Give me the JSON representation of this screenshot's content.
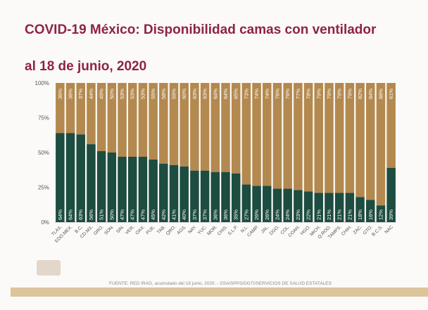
{
  "title_line1": "COVID-19 México: Disponibilidad camas con ventilador",
  "title_line2": "al 18 de junio, 2020",
  "footer": "FUENTE: RED IRAG, acumulado del 18 junio, 2020. -  SSA/SPPS/DGTI/SERVICIOS DE SALUD ESTATALES",
  "colors": {
    "occupied": "#1d4c40",
    "available": "#b3894f",
    "title": "#8e2346"
  },
  "chart_data": {
    "type": "bar",
    "stacked": true,
    "title": "COVID-19 México: Disponibilidad camas con ventilador al 18 de junio, 2020",
    "ylim": [
      0,
      100
    ],
    "yticks": [
      "0%",
      "25%",
      "50%",
      "75%",
      "100%"
    ],
    "categories": [
      "TLAX.",
      "EDO.MEX.",
      "B.C.",
      "CD.MX.",
      "GRO.",
      "SON.",
      "SIN.",
      "VER.",
      "OAX.",
      "PUE.",
      "TAB.",
      "QRO.",
      "AGS.",
      "NAY.",
      "YUC.",
      "MOR.",
      "CHIS.",
      "S.L.P.",
      "N.L.",
      "CAMP.",
      "JAL.",
      "DGO.",
      "COL.",
      "COAH.",
      "HGO.",
      "MICH.",
      "Q.ROO.",
      "TAMPS.",
      "CHIH.",
      "ZAC.",
      "GTO.",
      "B.C.S.",
      "NAC"
    ],
    "series": [
      {
        "name": "bottom",
        "values": [
          64,
          64,
          63,
          56,
          51,
          50,
          47,
          47,
          47,
          45,
          42,
          41,
          40,
          37,
          37,
          36,
          36,
          35,
          27,
          26,
          26,
          24,
          24,
          23,
          22,
          21,
          21,
          21,
          21,
          18,
          16,
          12,
          39
        ]
      },
      {
        "name": "top",
        "values": [
          36,
          36,
          37,
          44,
          49,
          50,
          53,
          53,
          53,
          55,
          58,
          59,
          60,
          63,
          63,
          64,
          64,
          65,
          73,
          74,
          74,
          76,
          76,
          77,
          78,
          79,
          79,
          79,
          79,
          82,
          84,
          88,
          61
        ]
      }
    ]
  }
}
